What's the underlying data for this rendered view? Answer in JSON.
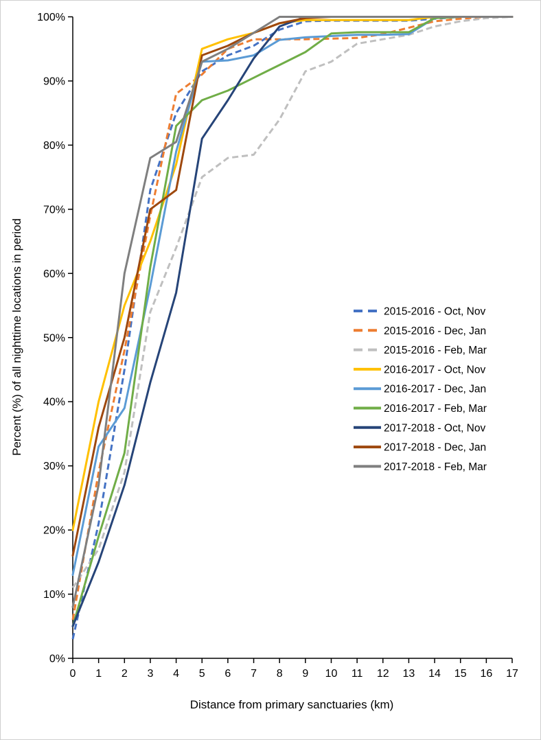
{
  "chart_data": {
    "type": "line",
    "title": "",
    "xlabel": "Distance from primary sanctuaries (km)",
    "ylabel": "Percent (%) of all nighttime locations in period",
    "x": [
      0,
      1,
      2,
      3,
      4,
      5,
      6,
      7,
      8,
      9,
      10,
      11,
      12,
      13,
      14,
      15,
      16,
      17
    ],
    "x_tick_labels": [
      "0",
      "1",
      "2",
      "3",
      "4",
      "5",
      "6",
      "7",
      "8",
      "9",
      "10",
      "11",
      "12",
      "13",
      "14",
      "15",
      "16",
      "17"
    ],
    "y_tick_labels": [
      "0%",
      "10%",
      "20%",
      "30%",
      "40%",
      "50%",
      "60%",
      "70%",
      "80%",
      "90%",
      "100%"
    ],
    "ylim": [
      0,
      100
    ],
    "xlim": [
      0,
      17
    ],
    "grid": false,
    "legend_position": "middle-right",
    "axis_color": "#000000",
    "series": [
      {
        "name": "2015-2016 - Oct, Nov",
        "color": "#4472C4",
        "dashed": true,
        "values": [
          3,
          21,
          45,
          73,
          85,
          91.5,
          94,
          95.5,
          98,
          99.3,
          99.4,
          99.4,
          99.4,
          99.4,
          99.7,
          100,
          100,
          100
        ]
      },
      {
        "name": "2015-2016 - Dec, Jan",
        "color": "#ED7D31",
        "dashed": true,
        "values": [
          6,
          29,
          48,
          69,
          88,
          91,
          95,
          96.5,
          96.5,
          96.5,
          96.6,
          96.7,
          97.3,
          98.3,
          99.3,
          99.7,
          100,
          100
        ]
      },
      {
        "name": "2015-2016 - Feb, Mar",
        "color": "#BFBFBF",
        "dashed": true,
        "values": [
          11,
          17,
          29,
          54,
          64,
          75,
          78,
          78.5,
          84,
          91.5,
          93,
          95.8,
          96.5,
          97.2,
          98.5,
          99.3,
          99.8,
          100
        ]
      },
      {
        "name": "2016-2017 - Oct, Nov",
        "color": "#FFC000",
        "dashed": false,
        "values": [
          20,
          40,
          55,
          65,
          77,
          95,
          96.5,
          97.5,
          99,
          99.5,
          99.5,
          99.5,
          99.5,
          99.5,
          100,
          100,
          100,
          100
        ]
      },
      {
        "name": "2016-2017 - Dec, Jan",
        "color": "#5B9BD5",
        "dashed": false,
        "values": [
          13,
          33,
          39,
          58,
          79,
          93,
          93.2,
          94,
          96.4,
          96.8,
          97,
          97.2,
          97.2,
          97.3,
          99.8,
          100,
          100,
          100
        ]
      },
      {
        "name": "2016-2017 - Feb, Mar",
        "color": "#70AD47",
        "dashed": false,
        "values": [
          5,
          19,
          32,
          61,
          83,
          87,
          88.5,
          90.5,
          92.5,
          94.5,
          97.4,
          97.6,
          97.6,
          97.6,
          99.8,
          100,
          100,
          100
        ]
      },
      {
        "name": "2017-2018 - Oct, Nov",
        "color": "#264478",
        "dashed": false,
        "values": [
          5,
          15,
          27,
          43,
          57,
          81,
          87,
          93.5,
          98.5,
          100,
          100,
          100,
          100,
          100,
          100,
          100,
          100,
          100
        ]
      },
      {
        "name": "2017-2018 - Dec, Jan",
        "color": "#9E480E",
        "dashed": false,
        "values": [
          16,
          36,
          50,
          70,
          73,
          94,
          95.5,
          97.5,
          99,
          99.8,
          100,
          100,
          100,
          100,
          100,
          100,
          100,
          100
        ]
      },
      {
        "name": "2017-2018 - Feb, Mar",
        "color": "#7F7F7F",
        "dashed": false,
        "values": [
          8,
          27,
          60,
          78,
          80.5,
          93,
          95,
          97.5,
          100,
          100,
          100,
          100,
          100,
          100,
          100,
          100,
          100,
          100
        ]
      }
    ]
  }
}
